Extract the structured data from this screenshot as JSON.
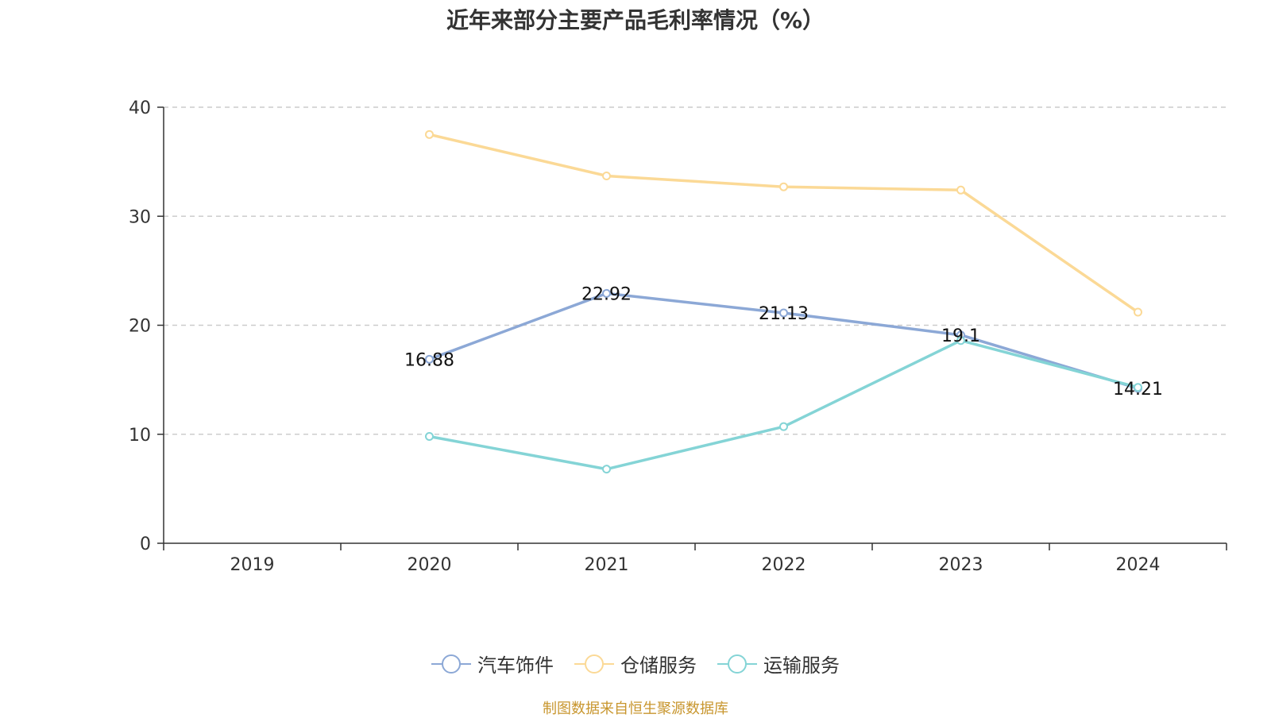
{
  "chart_data": {
    "type": "line",
    "title": "近年来部分主要产品毛利率情况（%）",
    "categories": [
      "2019",
      "2020",
      "2021",
      "2022",
      "2023",
      "2024"
    ],
    "ylim": [
      0,
      40
    ],
    "yticks": [
      0,
      10,
      20,
      30,
      40
    ],
    "grid": true,
    "legend_position": "bottom-center",
    "series": [
      {
        "name": "汽车饰件",
        "color": "#8ca8d6",
        "values": [
          null,
          16.88,
          22.92,
          21.13,
          19.1,
          14.21
        ],
        "labels": [
          null,
          "16.88",
          "22.92",
          "21.13",
          "19.1",
          "14.21"
        ]
      },
      {
        "name": "仓储服务",
        "color": "#fbd996",
        "values": [
          null,
          37.5,
          33.7,
          32.7,
          32.4,
          21.2
        ],
        "labels": [
          null,
          null,
          null,
          null,
          null,
          null
        ]
      },
      {
        "name": "运输服务",
        "color": "#84d4d6",
        "values": [
          null,
          9.8,
          6.8,
          10.7,
          18.6,
          14.3
        ],
        "labels": [
          null,
          null,
          null,
          null,
          null,
          null
        ]
      }
    ]
  },
  "source": "制图数据来自恒生聚源数据库"
}
